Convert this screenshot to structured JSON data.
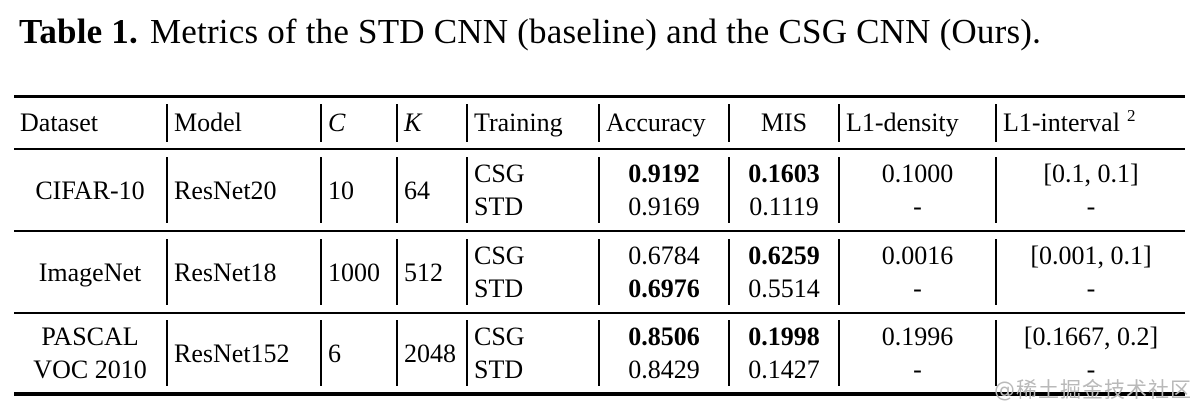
{
  "caption": {
    "label": "Table 1.",
    "text": "Metrics of the STD CNN (baseline) and the CSG CNN (Ours)."
  },
  "table": {
    "columns": {
      "dataset": "Dataset",
      "model": "Model",
      "c": "C",
      "k": "K",
      "training": "Training",
      "accuracy": "Accuracy",
      "mis": "MIS",
      "l1_density": "L1-density",
      "l1_interval": "L1-interval"
    },
    "interval_sup": "2",
    "rows": [
      {
        "dataset": [
          "CIFAR-10"
        ],
        "model": "ResNet20",
        "c": "10",
        "k": "64",
        "training": [
          "CSG",
          "STD"
        ],
        "accuracy": [
          {
            "text": "0.9192",
            "bold": true
          },
          {
            "text": "0.9169",
            "bold": false
          }
        ],
        "mis": [
          {
            "text": "0.1603",
            "bold": true
          },
          {
            "text": "0.1119",
            "bold": false
          }
        ],
        "l1_density": [
          "0.1000",
          "-"
        ],
        "l1_interval": [
          "[0.1, 0.1]",
          "-"
        ]
      },
      {
        "dataset": [
          "ImageNet"
        ],
        "model": "ResNet18",
        "c": "1000",
        "k": "512",
        "training": [
          "CSG",
          "STD"
        ],
        "accuracy": [
          {
            "text": "0.6784",
            "bold": false
          },
          {
            "text": "0.6976",
            "bold": true
          }
        ],
        "mis": [
          {
            "text": "0.6259",
            "bold": true
          },
          {
            "text": "0.5514",
            "bold": false
          }
        ],
        "l1_density": [
          "0.0016",
          "-"
        ],
        "l1_interval": [
          "[0.001, 0.1]",
          "-"
        ]
      },
      {
        "dataset": [
          "PASCAL",
          "VOC 2010"
        ],
        "model": "ResNet152",
        "c": "6",
        "k": "2048",
        "training": [
          "CSG",
          "STD"
        ],
        "accuracy": [
          {
            "text": "0.8506",
            "bold": true
          },
          {
            "text": "0.8429",
            "bold": false
          }
        ],
        "mis": [
          {
            "text": "0.1998",
            "bold": true
          },
          {
            "text": "0.1427",
            "bold": false
          }
        ],
        "l1_density": [
          "0.1996",
          "-"
        ],
        "l1_interval": [
          "[0.1667, 0.2]",
          "-"
        ]
      }
    ]
  },
  "watermark": "@稀土掘金技术社区"
}
